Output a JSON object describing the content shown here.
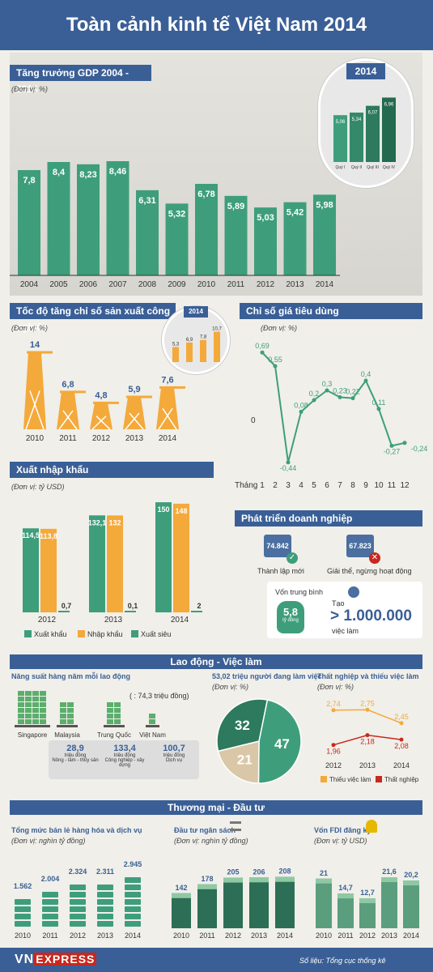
{
  "page": {
    "title": "Toàn cảnh kinh tế Việt Nam 2014"
  },
  "colors": {
    "navy": "#3a5f96",
    "teal": "#3e9e7c",
    "orange": "#f4a93b",
    "red": "#c8281e",
    "ink": "#333333"
  },
  "gdp": {
    "title": "Tăng trưởng GDP 2004 - 2014",
    "unit": "(Đơn vị: %)",
    "chart_data": {
      "type": "bar",
      "categories": [
        "2004",
        "2005",
        "2006",
        "2007",
        "2008",
        "2009",
        "2010",
        "2011",
        "2012",
        "2013",
        "2014"
      ],
      "values": [
        7.8,
        8.4,
        8.23,
        8.46,
        6.31,
        5.32,
        6.78,
        5.89,
        5.03,
        5.42,
        5.98
      ],
      "labels": [
        "7,8",
        "8,4",
        "8,23",
        "8,46",
        "6,31",
        "5,32",
        "6,78",
        "5,89",
        "5,03",
        "5,42",
        "5,98"
      ],
      "ylim": [
        0,
        9
      ]
    },
    "inset": {
      "year": "2014",
      "chart_data": {
        "type": "bar",
        "categories": [
          "Quý I",
          "Quý II",
          "Quý III",
          "Quý IV"
        ],
        "values": [
          5.06,
          5.34,
          6.07,
          6.96
        ],
        "labels": [
          "5,06",
          "5,34",
          "6,07",
          "6,96"
        ]
      }
    }
  },
  "industry": {
    "title": "Tốc độ tăng chỉ số sản xuất công nghiệp",
    "unit": "(Đơn vị: %)",
    "chart_data": {
      "type": "bar",
      "categories": [
        "2010",
        "2011",
        "2012",
        "2013",
        "2014"
      ],
      "values": [
        14,
        6.8,
        4.8,
        5.9,
        7.6
      ],
      "labels": [
        "14",
        "6,8",
        "4,8",
        "5,9",
        "7,6"
      ]
    },
    "inset": {
      "year": "2014",
      "chart_data": {
        "type": "bar",
        "values": [
          5.3,
          6.9,
          7.8,
          10.7
        ],
        "labels": [
          "5,3",
          "6,9",
          "7,8",
          "10,7"
        ]
      }
    }
  },
  "cpi": {
    "title": "Chỉ số giá tiêu dùng",
    "unit": "(Đơn vị: %)",
    "x_prefix": "Tháng",
    "zero_label": "0",
    "chart_data": {
      "type": "line",
      "x": [
        1,
        2,
        3,
        4,
        5,
        6,
        7,
        8,
        9,
        10,
        11,
        12
      ],
      "values": [
        0.69,
        0.55,
        -0.44,
        0.08,
        0.2,
        0.3,
        0.23,
        0.22,
        0.4,
        0.11,
        -0.27,
        -0.24
      ],
      "labels": [
        "0,69",
        "0,55",
        "-0,44",
        "0,08",
        "0,2",
        "0,3",
        "0,23",
        "0,22",
        "0,4",
        "0,11",
        "-0,27",
        "-0,24"
      ],
      "ylim": [
        -0.5,
        0.8
      ]
    }
  },
  "trade": {
    "title": "Xuất nhập khẩu",
    "unit": "(Đơn vị: tỷ USD)",
    "chart_data": {
      "type": "bar",
      "categories": [
        "2012",
        "2013",
        "2014"
      ],
      "series": [
        {
          "name": "Xuất khẩu",
          "values": [
            114.5,
            132.1,
            150
          ],
          "labels": [
            "114,5",
            "132,1",
            "150"
          ]
        },
        {
          "name": "Nhập khẩu",
          "values": [
            113.8,
            132,
            148
          ],
          "labels": [
            "113,8",
            "132",
            "148"
          ]
        },
        {
          "name": "Xuất siêu",
          "values": [
            0.7,
            0.1,
            2
          ],
          "labels": [
            "0,7",
            "0,1",
            "2"
          ]
        }
      ],
      "ylim": [
        0,
        160
      ]
    }
  },
  "business": {
    "title": "Phát triển doanh nghiệp",
    "new_count": "74.842",
    "new_label": "Thành lập mới",
    "closed_count": "67.823",
    "closed_label": "Giải thể, ngừng hoạt động",
    "capital_label": "Vốn trung bình",
    "capital_value": "5,8",
    "capital_unit": "tỷ đồng",
    "jobs_prefix": "Tạo",
    "jobs_value": "> 1.000.000",
    "jobs_label": "việc làm"
  },
  "labor": {
    "band": "Lao động - Việc làm",
    "productivity": {
      "title": "Năng suất hàng năm mỗi lao động",
      "note": "( : 74,3 triệu đồng)",
      "countries": [
        "Singapore",
        "Malaysia",
        "Trung Quốc",
        "Việt Nam"
      ],
      "sectors": [
        {
          "value": "28,9",
          "unit": "triệu đồng",
          "label": "Nông - lâm - thủy sản"
        },
        {
          "value": "133,4",
          "unit": "triệu đồng",
          "label": "Công nghiệp - xây dựng"
        },
        {
          "value": "100,7",
          "unit": "triệu đồng",
          "label": "Dịch vụ"
        }
      ]
    },
    "workforce": {
      "title": "53,02 triệu người đang làm việc",
      "unit": "(Đơn vị: %)",
      "chart_data": {
        "type": "pie",
        "values": [
          47,
          21,
          32
        ],
        "labels": [
          "47",
          "21",
          "32"
        ]
      }
    },
    "unemployment": {
      "title": "Thất nghiệp và thiếu việc làm",
      "unit": "(Đơn vị: %)",
      "chart_data": {
        "type": "line",
        "x": [
          "2012",
          "2013",
          "2014"
        ],
        "series": [
          {
            "name": "Thiếu việc làm",
            "values": [
              2.74,
              2.75,
              2.45
            ],
            "labels": [
              "2,74",
              "2,75",
              "2,45"
            ]
          },
          {
            "name": "Thất nghiệp",
            "values": [
              1.96,
              2.18,
              2.08
            ],
            "labels": [
              "1,96",
              "2,18",
              "2,08"
            ]
          }
        ]
      }
    }
  },
  "commerce": {
    "band": "Thương mại - Đầu tư",
    "retail": {
      "title": "Tổng mức bán lẻ hàng hóa và dịch vụ",
      "unit": "(Đơn vị: nghìn tỷ đồng)",
      "chart_data": {
        "type": "bar",
        "categories": [
          "2010",
          "2011",
          "2012",
          "2013",
          "2014"
        ],
        "values": [
          1562,
          2004,
          2324,
          2311,
          2945
        ],
        "labels": [
          "1.562",
          "2.004",
          "2.324",
          "2.311",
          "2.945"
        ]
      }
    },
    "budget": {
      "title": "Đầu tư ngân sách",
      "unit": "(Đơn vị: nghìn tỷ đồng)",
      "chart_data": {
        "type": "bar",
        "categories": [
          "2010",
          "2011",
          "2012",
          "2013",
          "2014"
        ],
        "values": [
          142,
          178,
          205,
          206,
          208
        ],
        "labels": [
          "142",
          "178",
          "205",
          "206",
          "208"
        ]
      }
    },
    "fdi": {
      "title": "Vốn FDI đăng ký",
      "unit": "(Đơn vị: tỷ USD)",
      "chart_data": {
        "type": "bar",
        "categories": [
          "2010",
          "2011",
          "2012",
          "2013",
          "2014"
        ],
        "values": [
          21,
          14.7,
          12.7,
          21.6,
          20.2
        ],
        "labels": [
          "21",
          "14,7",
          "12,7",
          "21,6",
          "20,2"
        ]
      }
    }
  },
  "footer": {
    "brand_vn": "VN",
    "brand_ex": "EXPRESS",
    "source": "Số liệu: Tổng cục thống kê"
  }
}
